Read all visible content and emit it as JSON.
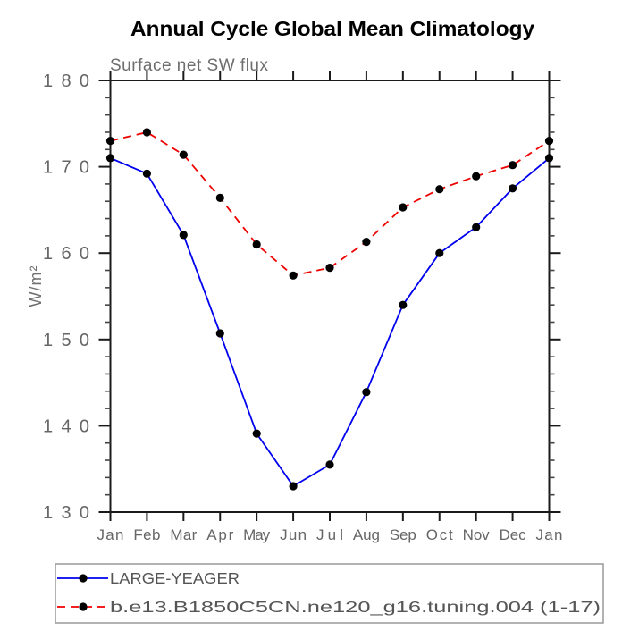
{
  "title": "Annual Cycle Global Mean Climatology",
  "subtitle": "Surface net SW flux",
  "ylabel": "W/m²",
  "colors": {
    "series1": "#0000ee",
    "series2": "#ee0000",
    "marker": "#000000",
    "axis": "#1a1a1a",
    "text_gray": "#666666",
    "legend_border": "#999999"
  },
  "chart_data": {
    "type": "line",
    "categories": [
      "Jan",
      "Feb",
      "Mar",
      "Apr",
      "May",
      "Jun",
      "Jul",
      "Aug",
      "Sep",
      "Oct",
      "Nov",
      "Dec",
      "Jan"
    ],
    "series": [
      {
        "name": "LARGE-YEAGER",
        "color": "#0000ee",
        "line_style": "solid",
        "marker": "filled-circle",
        "values": [
          171.0,
          169.2,
          162.1,
          150.7,
          139.1,
          133.0,
          135.5,
          143.9,
          154.0,
          160.0,
          163.0,
          167.5,
          171.0
        ]
      },
      {
        "name": "b.e13.B1850C5CN.ne120_g16.tuning.004 (1-17)",
        "color": "#ee0000",
        "line_style": "dashed",
        "marker": "filled-circle",
        "values": [
          173.0,
          174.0,
          171.4,
          166.4,
          161.0,
          157.4,
          158.3,
          161.3,
          165.3,
          167.4,
          168.9,
          170.2,
          173.0
        ]
      }
    ],
    "title": "Annual Cycle Global Mean Climatology",
    "subtitle": "Surface net SW flux",
    "xlabel": "",
    "ylabel": "W/m²",
    "ylim": [
      130,
      180
    ],
    "yticks_major": [
      130,
      140,
      150,
      160,
      170,
      180
    ],
    "ytick_minor_step": 2,
    "grid": false,
    "legend_position": "bottom-left"
  }
}
